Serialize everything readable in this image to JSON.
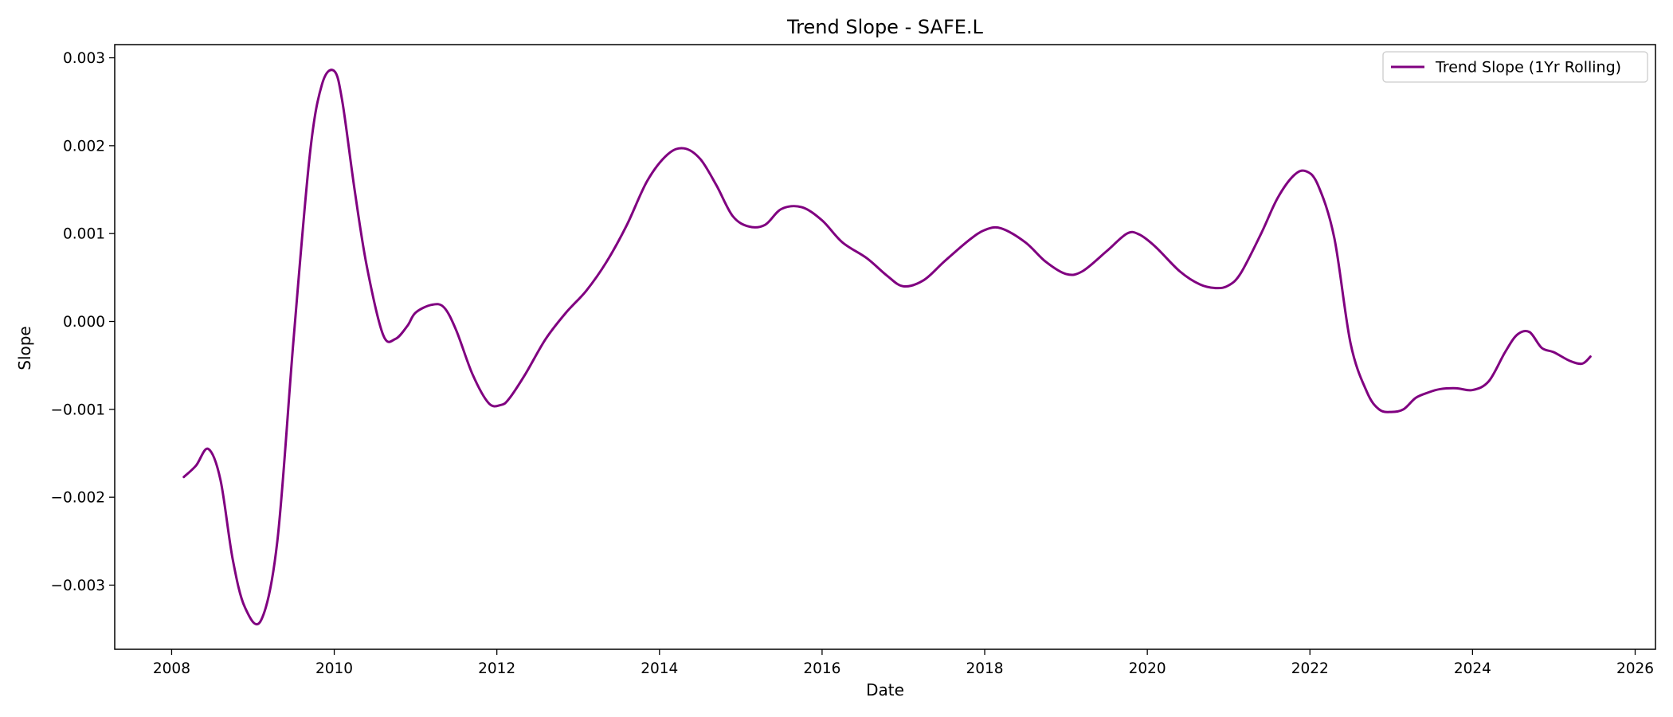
{
  "chart_data": {
    "type": "line",
    "title": "Trend Slope - SAFE.L",
    "xlabel": "Date",
    "ylabel": "Slope",
    "xlim": [
      2007.3,
      2026.25
    ],
    "ylim": [
      -0.00373,
      0.00315
    ],
    "x_ticks": [
      2008,
      2010,
      2012,
      2014,
      2016,
      2018,
      2020,
      2022,
      2024,
      2026
    ],
    "x_tick_labels": [
      "2008",
      "2010",
      "2012",
      "2014",
      "2016",
      "2018",
      "2020",
      "2022",
      "2024",
      "2026"
    ],
    "y_ticks": [
      -0.003,
      -0.002,
      -0.001,
      0.0,
      0.001,
      0.002,
      0.003
    ],
    "y_tick_labels": [
      "−0.003",
      "−0.002",
      "−0.001",
      "0.000",
      "0.001",
      "0.002",
      "0.003"
    ],
    "grid": false,
    "legend": {
      "position": "top-right"
    },
    "series": [
      {
        "name": "Trend Slope (1Yr Rolling)",
        "color": "#800080",
        "x": [
          2008.15,
          2008.3,
          2008.45,
          2008.6,
          2008.75,
          2008.9,
          2009.1,
          2009.3,
          2009.5,
          2009.7,
          2009.85,
          2010.0,
          2010.1,
          2010.25,
          2010.4,
          2010.6,
          2010.75,
          2010.9,
          2011.0,
          2011.2,
          2011.35,
          2011.5,
          2011.7,
          2011.9,
          2012.05,
          2012.15,
          2012.35,
          2012.6,
          2012.85,
          2013.1,
          2013.35,
          2013.6,
          2013.85,
          2014.1,
          2014.3,
          2014.5,
          2014.7,
          2014.9,
          2015.1,
          2015.3,
          2015.5,
          2015.75,
          2016.0,
          2016.25,
          2016.55,
          2016.8,
          2017.0,
          2017.25,
          2017.5,
          2017.8,
          2018.0,
          2018.2,
          2018.5,
          2018.75,
          2019.0,
          2019.2,
          2019.5,
          2019.75,
          2019.9,
          2020.1,
          2020.4,
          2020.65,
          2020.85,
          2021.0,
          2021.15,
          2021.4,
          2021.6,
          2021.8,
          2021.95,
          2022.1,
          2022.3,
          2022.5,
          2022.7,
          2022.85,
          2023.0,
          2023.15,
          2023.3,
          2023.45,
          2023.6,
          2023.8,
          2024.0,
          2024.2,
          2024.4,
          2024.55,
          2024.7,
          2024.85,
          2025.0,
          2025.2,
          2025.35,
          2025.45
        ],
        "y": [
          -0.00177,
          -0.00164,
          -0.00145,
          -0.0018,
          -0.0027,
          -0.00325,
          -0.0034,
          -0.0025,
          -0.0002,
          0.0019,
          0.0027,
          0.00285,
          0.0025,
          0.0015,
          0.00063,
          -0.00015,
          -0.0002,
          -5e-05,
          0.0001,
          0.00019,
          0.00016,
          -0.0001,
          -0.0006,
          -0.00093,
          -0.00095,
          -0.00088,
          -0.0006,
          -0.0002,
          0.0001,
          0.00035,
          0.00068,
          0.0011,
          0.0016,
          0.0019,
          0.00197,
          0.00185,
          0.00155,
          0.0012,
          0.00108,
          0.0011,
          0.00128,
          0.0013,
          0.00115,
          0.0009,
          0.00072,
          0.00052,
          0.0004,
          0.00047,
          0.00068,
          0.00092,
          0.00104,
          0.00106,
          0.0009,
          0.00068,
          0.00054,
          0.00057,
          0.0008,
          0.001,
          0.00099,
          0.00085,
          0.00057,
          0.00042,
          0.00038,
          0.00041,
          0.00055,
          0.001,
          0.0014,
          0.00166,
          0.00171,
          0.00155,
          0.00095,
          -0.00025,
          -0.0008,
          -0.001,
          -0.00103,
          -0.001,
          -0.00087,
          -0.00081,
          -0.00077,
          -0.00076,
          -0.00078,
          -0.00068,
          -0.00035,
          -0.00015,
          -0.00012,
          -0.0003,
          -0.00035,
          -0.00045,
          -0.00048,
          -0.0004
        ]
      }
    ]
  }
}
